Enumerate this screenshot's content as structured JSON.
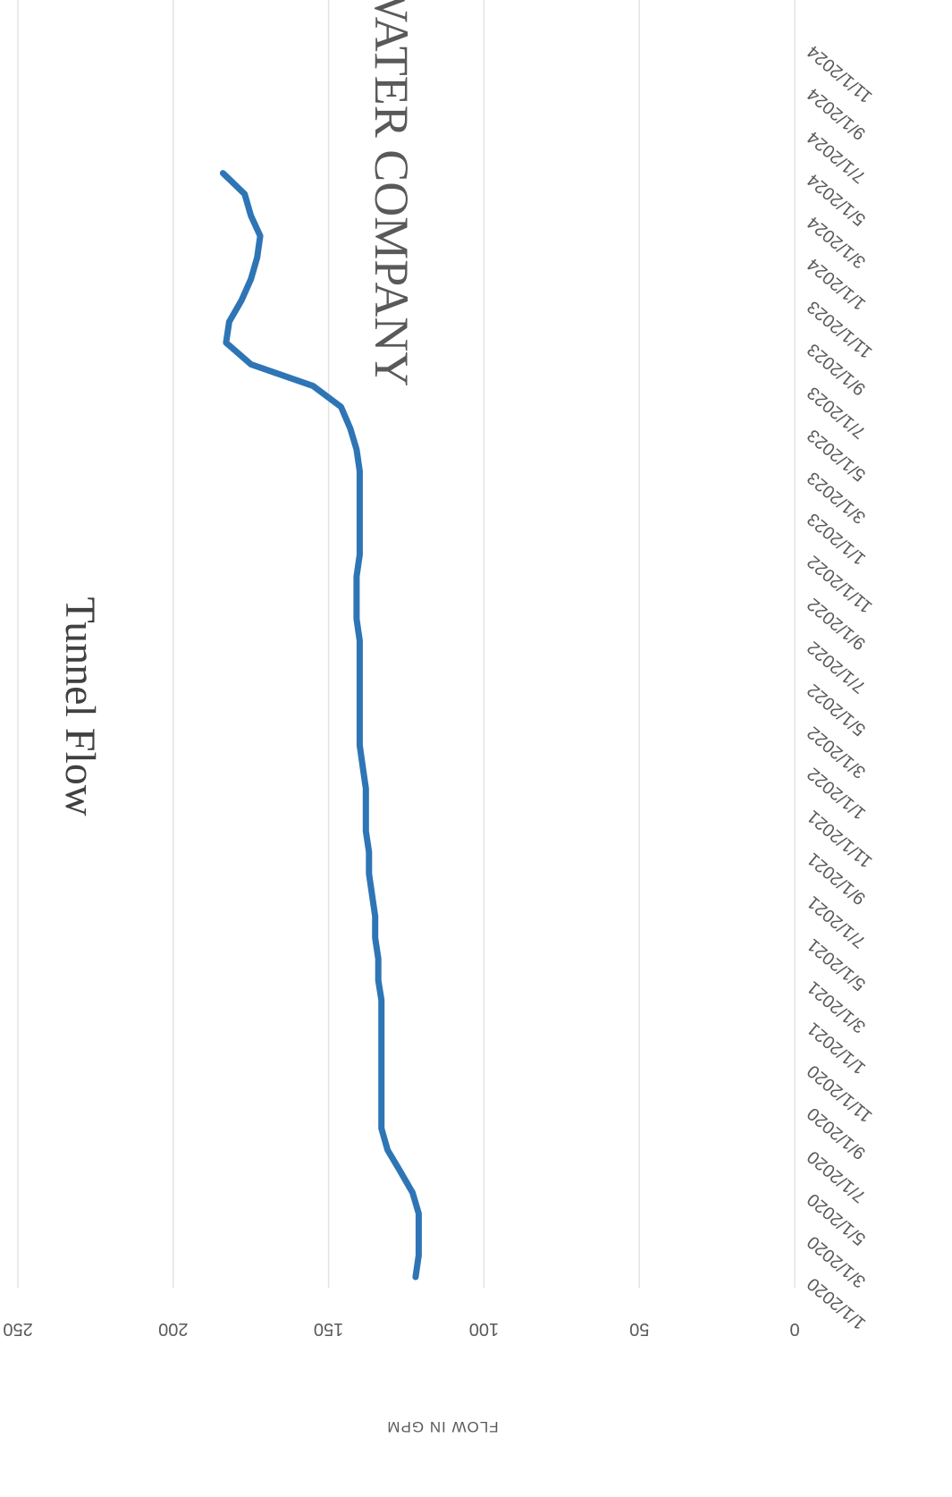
{
  "chart_data": {
    "type": "line",
    "title": "SHEEP CREEK WATER COMPANY",
    "subtitle": "Tunnel Flow",
    "ylabel": "FLOW IN GPM",
    "xlabel": "",
    "ylim": [
      0,
      250
    ],
    "yticks": [
      0,
      50,
      100,
      150,
      200,
      250
    ],
    "grid": true,
    "legend": "none",
    "orientation": "rotated-180",
    "xlim": [
      "2020-01-01",
      "2024-11-01"
    ],
    "xtick_labels": [
      "1/1/2020",
      "3/1/2020",
      "5/1/2020",
      "7/1/2020",
      "9/1/2020",
      "11/1/2020",
      "1/1/2021",
      "3/1/2021",
      "5/1/2021",
      "7/1/2021",
      "9/1/2021",
      "11/1/2021",
      "1/1/2022",
      "3/1/2022",
      "5/1/2022",
      "7/1/2022",
      "9/1/2022",
      "11/1/2022",
      "1/1/2023",
      "3/1/2023",
      "5/1/2023",
      "7/1/2023",
      "9/1/2023",
      "11/1/2023",
      "1/1/2024",
      "3/1/2024",
      "5/1/2024",
      "7/1/2024",
      "9/1/2024",
      "11/1/2024"
    ],
    "xtick_dates": [
      "2020-01-01",
      "2020-03-01",
      "2020-05-01",
      "2020-07-01",
      "2020-09-01",
      "2020-11-01",
      "2021-01-01",
      "2021-03-01",
      "2021-05-01",
      "2021-07-01",
      "2021-09-01",
      "2021-11-01",
      "2022-01-01",
      "2022-03-01",
      "2022-05-01",
      "2022-07-01",
      "2022-09-01",
      "2022-11-01",
      "2023-01-01",
      "2023-03-01",
      "2023-05-01",
      "2023-07-01",
      "2023-09-01",
      "2023-11-01",
      "2024-01-01",
      "2024-03-01",
      "2024-05-01",
      "2024-07-01",
      "2024-09-01",
      "2024-11-01"
    ],
    "series": [
      {
        "color": "#2E75B6",
        "x": [
          "2020-01-01",
          "2020-02-01",
          "2020-03-01",
          "2020-04-01",
          "2020-05-01",
          "2020-06-01",
          "2020-07-01",
          "2020-08-01",
          "2020-09-01",
          "2020-10-01",
          "2020-11-01",
          "2020-12-01",
          "2021-01-01",
          "2021-02-01",
          "2021-03-01",
          "2021-04-01",
          "2021-05-01",
          "2021-06-01",
          "2021-07-01",
          "2021-08-01",
          "2021-09-01",
          "2021-10-01",
          "2021-11-01",
          "2021-12-01",
          "2022-01-01",
          "2022-02-01",
          "2022-03-01",
          "2022-04-01",
          "2022-05-01",
          "2022-06-01",
          "2022-07-01",
          "2022-08-01",
          "2022-09-01",
          "2022-10-01",
          "2022-11-01",
          "2022-12-01",
          "2023-01-01",
          "2023-02-01",
          "2023-03-01",
          "2023-04-01",
          "2023-05-01",
          "2023-06-01",
          "2023-07-01",
          "2023-08-01",
          "2023-09-01",
          "2023-10-01",
          "2023-11-01",
          "2023-12-01",
          "2024-01-01",
          "2024-02-01",
          "2024-03-01",
          "2024-04-01",
          "2024-05-01"
        ],
        "y": [
          122,
          121,
          121,
          121,
          123,
          127,
          131,
          133,
          133,
          133,
          133,
          133,
          133,
          133,
          134,
          134,
          135,
          135,
          136,
          137,
          137,
          138,
          138,
          138,
          139,
          140,
          140,
          140,
          140,
          140,
          140,
          141,
          141,
          141,
          140,
          140,
          140,
          140,
          140,
          141,
          143,
          146,
          155,
          175,
          183,
          182,
          178,
          175,
          173,
          172,
          175,
          177,
          184
        ]
      }
    ]
  }
}
